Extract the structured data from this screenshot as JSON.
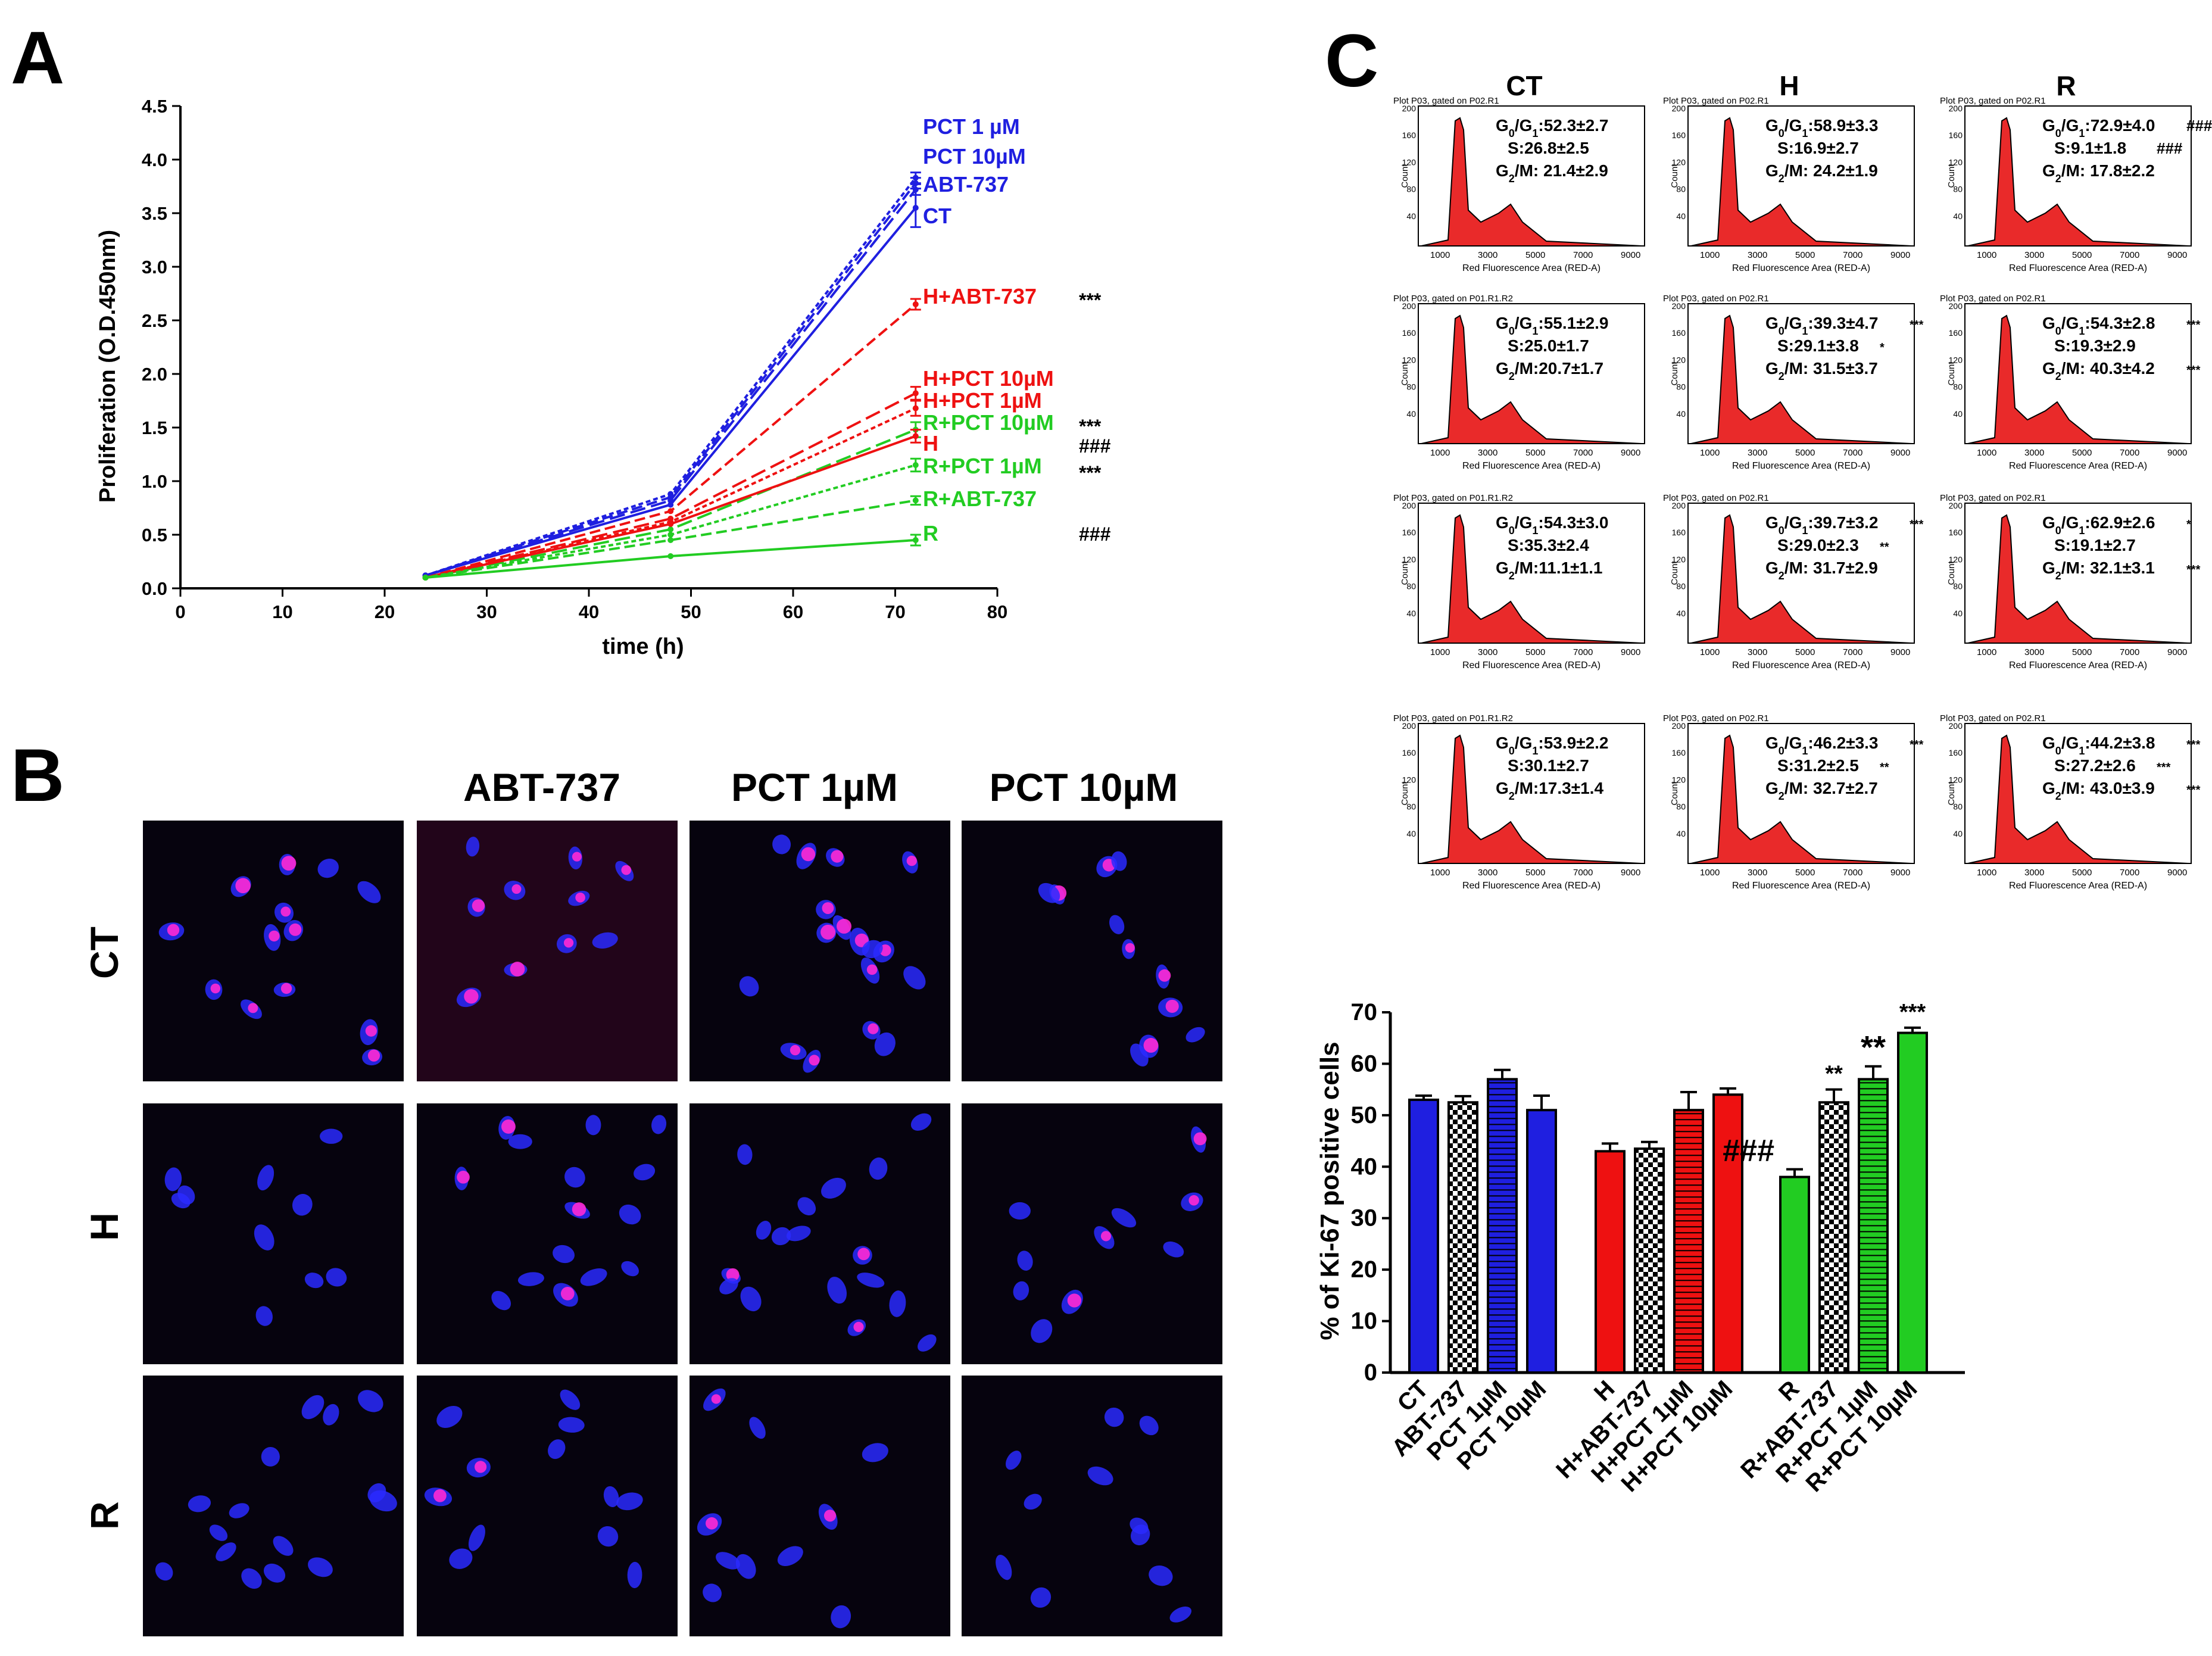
{
  "panels": {
    "a": "A",
    "b": "B",
    "c": "C"
  },
  "colors": {
    "ct": "#1f1fe0",
    "h": "#ee1111",
    "r": "#22cc22",
    "nucleus": "#2a2aff",
    "ki67": "#ff2ad4"
  },
  "chart_data": [
    {
      "type": "line",
      "xlabel": "time (h)",
      "ylabel": "Proliferation (O.D.450nm)",
      "xlim": [
        0,
        80
      ],
      "ylim": [
        0,
        4.5
      ],
      "xticks": [
        "0",
        "10",
        "20",
        "30",
        "40",
        "50",
        "60",
        "70",
        "80"
      ],
      "yticks": [
        "0.0",
        "0.5",
        "1.0",
        "1.5",
        "2.0",
        "2.5",
        "3.0",
        "3.5",
        "4.0",
        "4.5"
      ],
      "x": [
        24,
        48,
        72
      ],
      "series": [
        {
          "name": "PCT 1 µM",
          "values": [
            0.12,
            0.88,
            3.83
          ],
          "color": "#1f1fe0",
          "dash": "dotted",
          "err": 0.05
        },
        {
          "name": "PCT 10µM",
          "values": [
            0.12,
            0.85,
            3.78
          ],
          "color": "#1f1fe0",
          "dash": "dashed",
          "err": 0.05
        },
        {
          "name": "ABT-737",
          "values": [
            0.12,
            0.82,
            3.72
          ],
          "color": "#1f1fe0",
          "dash": "dashed2",
          "err": 0.05
        },
        {
          "name": "CT",
          "values": [
            0.12,
            0.78,
            3.55
          ],
          "color": "#1f1fe0",
          "dash": "solid",
          "err": 0.18
        },
        {
          "name": "H+ABT-737",
          "values": [
            0.1,
            0.72,
            2.65
          ],
          "color": "#ee1111",
          "dash": "dashed",
          "err": 0.05,
          "sig": "***"
        },
        {
          "name": "H+PCT 10µM",
          "values": [
            0.1,
            0.65,
            1.82
          ],
          "color": "#ee1111",
          "dash": "dashed2",
          "err": 0.06
        },
        {
          "name": "H+PCT 1µM",
          "values": [
            0.1,
            0.62,
            1.68
          ],
          "color": "#ee1111",
          "dash": "dotted",
          "err": 0.07
        },
        {
          "name": "R+PCT 10µM",
          "values": [
            0.1,
            0.55,
            1.48
          ],
          "color": "#22cc22",
          "dash": "dashed2",
          "err": 0.07,
          "sig": "***"
        },
        {
          "name": "H",
          "values": [
            0.1,
            0.6,
            1.42
          ],
          "color": "#ee1111",
          "dash": "solid",
          "err": 0.06,
          "sig": "###"
        },
        {
          "name": "R+PCT 1µM",
          "values": [
            0.1,
            0.5,
            1.15
          ],
          "color": "#22cc22",
          "dash": "dotted",
          "err": 0.06,
          "sig": "***"
        },
        {
          "name": "R+ABT-737",
          "values": [
            0.1,
            0.45,
            0.82
          ],
          "color": "#22cc22",
          "dash": "dashed",
          "err": 0.04
        },
        {
          "name": "R",
          "values": [
            0.1,
            0.3,
            0.45
          ],
          "color": "#22cc22",
          "dash": "solid",
          "err": 0.05,
          "sig": "###"
        }
      ]
    },
    {
      "type": "bar",
      "ylabel": "% of Ki-67 positive cells",
      "ylim": [
        0,
        70
      ],
      "yticks": [
        "0",
        "10",
        "20",
        "30",
        "40",
        "50",
        "60",
        "70"
      ],
      "categories": [
        "CT",
        "ABT-737",
        "PCT 1µM",
        "PCT 10µM",
        "H",
        "H+ABT-737",
        "H+PCT 1µM",
        "H+PCT 10µM",
        "R",
        "R+ABT-737",
        "R+PCT 1µM",
        "R+PCT 10µM"
      ],
      "values": [
        53,
        52.5,
        57,
        51,
        43,
        43.5,
        51,
        54,
        38,
        52.5,
        57,
        66
      ],
      "errors": [
        0.8,
        1.2,
        1.8,
        2.8,
        1.5,
        1.3,
        3.5,
        1.2,
        1.5,
        2.5,
        2.5,
        1.0
      ],
      "colors": [
        "#1f1fe0",
        "#1f1fe0",
        "#1f1fe0",
        "#1f1fe0",
        "#ee1111",
        "#ee1111",
        "#ee1111",
        "#ee1111",
        "#22cc22",
        "#22cc22",
        "#22cc22",
        "#22cc22"
      ],
      "patterns": [
        "solid",
        "check",
        "hstripe",
        "solid",
        "solid",
        "check",
        "hstripe",
        "solid",
        "solid",
        "check",
        "hstripe",
        "solid"
      ],
      "annotations": [
        "",
        "",
        "",
        "",
        "",
        "",
        "",
        "",
        "###",
        "**",
        "**",
        "***"
      ]
    }
  ],
  "microscopy": {
    "columns": [
      "",
      "ABT-737",
      "PCT 1µM",
      "PCT 10µM"
    ],
    "rows": [
      "CT",
      "H",
      "R"
    ]
  },
  "flow": {
    "columns": [
      "CT",
      "H",
      "R"
    ],
    "plot_title_r1": "Plot P03, gated on P02.R1",
    "plot_title_r2": "Plot P03, gated on P01.R1.R2",
    "xaxis": "Red Fluorescence Area (RED-A)",
    "yaxis": "Count",
    "xticks": [
      "1000",
      "3000",
      "5000",
      "7000",
      "9000"
    ],
    "yticks": [
      "40",
      "80",
      "120",
      "160",
      "200"
    ],
    "cells": [
      {
        "g": ":52.3±2.7",
        "s": "S:26.8±2.5",
        "m": "/M: 21.4±2.9",
        "gs": "",
        "ss": "",
        "ms": "",
        "title": "r1"
      },
      {
        "g": ":58.9±3.3",
        "s": "S:16.9±2.7",
        "m": "/M: 24.2±1.9",
        "gs": "",
        "ss": "",
        "ms": "",
        "title": "r1"
      },
      {
        "g": ":72.9±4.0",
        "s": "S:9.1±1.8",
        "m": "/M: 17.8±2.2",
        "gs": "###",
        "ss": "###",
        "ms": "",
        "title": "r1"
      },
      {
        "g": ":55.1±2.9",
        "s": "S:25.0±1.7",
        "m": "/M:20.7±1.7",
        "gs": "",
        "ss": "",
        "ms": "",
        "title": "r2"
      },
      {
        "g": ":39.3±4.7",
        "s": "S:29.1±3.8",
        "m": "/M: 31.5±3.7",
        "gs": "***",
        "ss": "*",
        "ms": "",
        "title": "r1"
      },
      {
        "g": ":54.3±2.8",
        "s": "S:19.3±2.9",
        "m": "/M: 40.3±4.2",
        "gs": "***",
        "ss": "",
        "ms": "***",
        "title": "r1"
      },
      {
        "g": ":54.3±3.0",
        "s": "S:35.3±2.4",
        "m": "/M:11.1±1.1",
        "gs": "",
        "ss": "",
        "ms": "",
        "title": "r2"
      },
      {
        "g": ":39.7±3.2",
        "s": "S:29.0±2.3",
        "m": "/M: 31.7±2.9",
        "gs": "***",
        "ss": "**",
        "ms": "",
        "title": "r1"
      },
      {
        "g": ":62.9±2.6",
        "s": "S:19.1±2.7",
        "m": "/M: 32.1±3.1",
        "gs": "*",
        "ss": "",
        "ms": "***",
        "title": "r1"
      },
      {
        "g": ":53.9±2.2",
        "s": "S:30.1±2.7",
        "m": "/M:17.3±1.4",
        "gs": "",
        "ss": "",
        "ms": "",
        "title": "r2"
      },
      {
        "g": ":46.2±3.3",
        "s": "S:31.2±2.5",
        "m": "/M: 32.7±2.7",
        "gs": "***",
        "ss": "**",
        "ms": "",
        "title": "r1"
      },
      {
        "g": ":44.2±3.8",
        "s": "S:27.2±2.6",
        "m": "/M: 43.0±3.9",
        "gs": "***",
        "ss": "***",
        "ms": "***",
        "title": "r1"
      }
    ]
  }
}
